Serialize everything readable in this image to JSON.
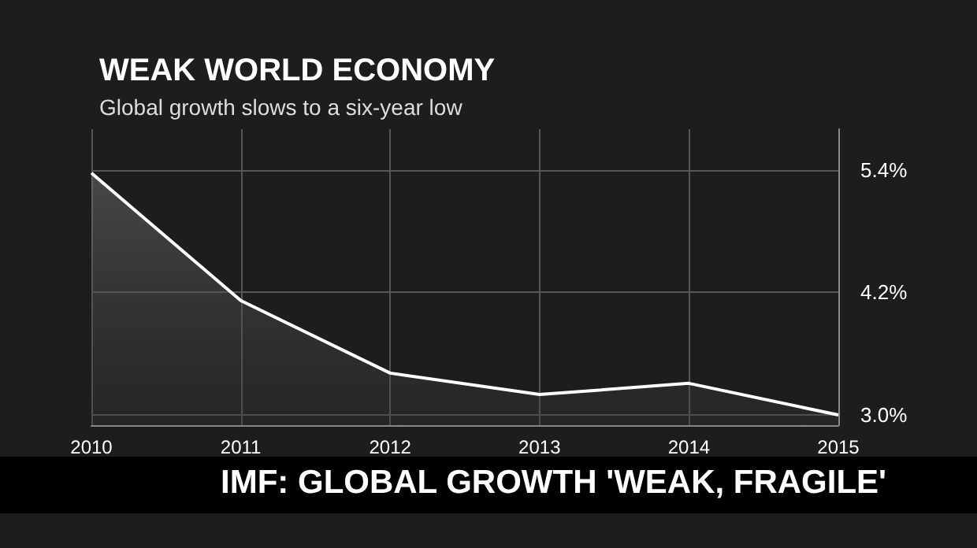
{
  "chart_data": {
    "type": "area",
    "title": "WEAK WORLD ECONOMY",
    "subtitle": "Global growth slows to a six-year low",
    "annotations": [
      "IMF: GLOBAL GROWTH 'WEAK, FRAGILE'"
    ],
    "categories": [
      "2010",
      "2011",
      "2012",
      "2013",
      "2014",
      "2015"
    ],
    "series": [
      {
        "color": "#ffffff",
        "values": [
          5.37,
          4.12,
          3.41,
          3.2,
          3.31,
          3.0
        ]
      }
    ],
    "ylim": [
      2.9,
      5.8
    ],
    "yticks": [
      {
        "value": 3.0,
        "label": "3.0%"
      },
      {
        "value": 4.2,
        "label": "4.2%"
      },
      {
        "value": 5.4,
        "label": "5.4%"
      }
    ],
    "grid": true,
    "marker": "none",
    "line_style": "solid"
  }
}
